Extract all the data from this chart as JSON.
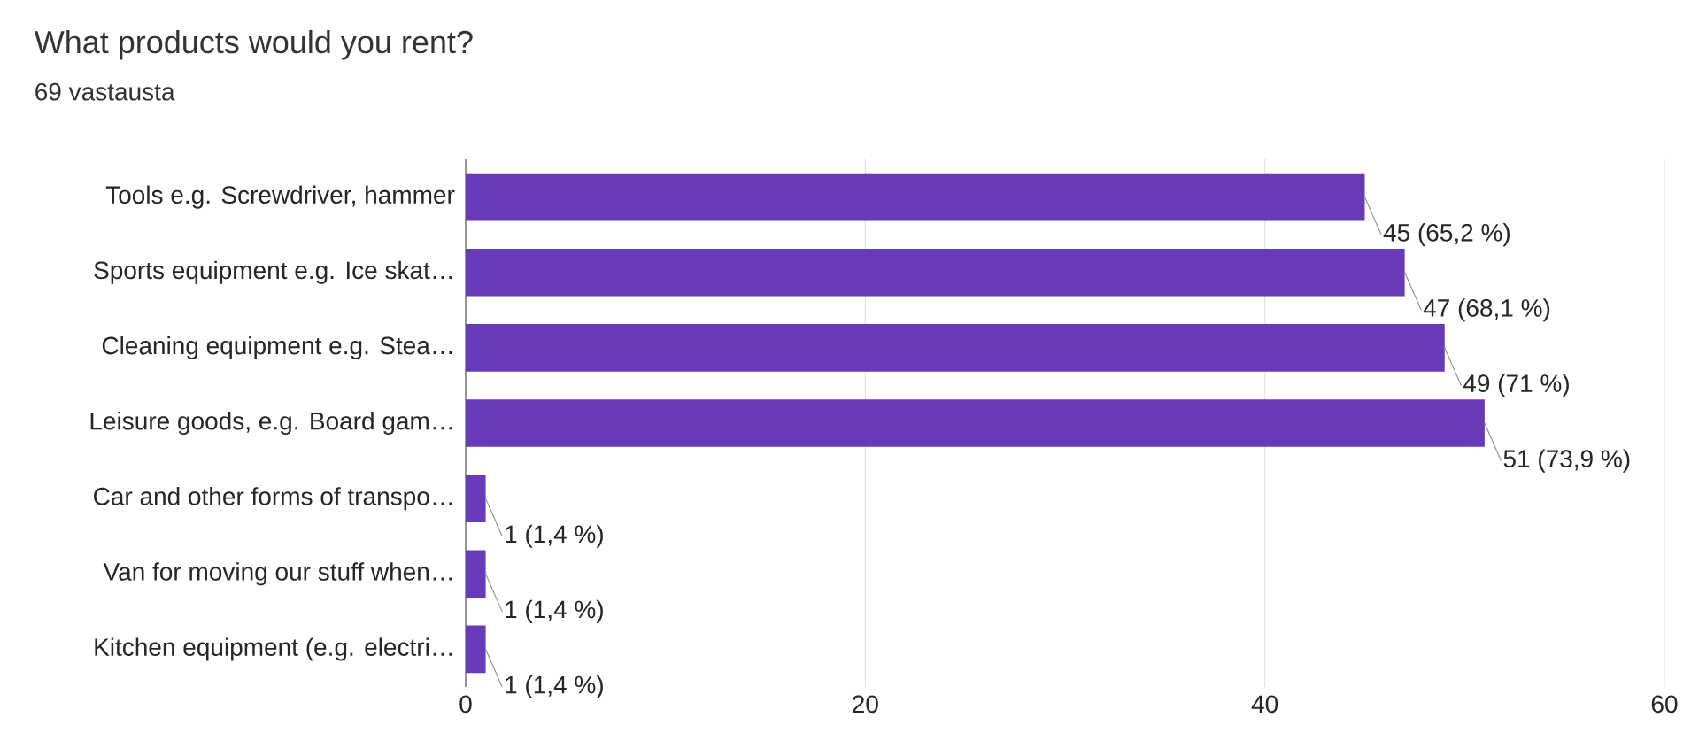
{
  "chart_data": {
    "type": "bar",
    "orientation": "horizontal",
    "title": "What products would you rent?",
    "subtitle": "69 vastausta",
    "categories": [
      "Tools e.g. Screwdriver, hammer",
      "Sports equipment e.g. Ice skat…",
      "Cleaning equipment e.g. Stea…",
      "Leisure goods, e.g. Board gam…",
      "Car and other forms of transpo…",
      "Van for moving our stuff when…",
      "Kitchen equipment (e.g. electri…"
    ],
    "values": [
      45,
      47,
      49,
      51,
      1,
      1,
      1
    ],
    "value_labels": [
      "45 (65,2 %)",
      "47 (68,1 %)",
      "49 (71 %)",
      "51 (73,9 %)",
      "1 (1,4 %)",
      "1 (1,4 %)",
      "1 (1,4 %)"
    ],
    "color": "#673ab7",
    "xlim": [
      0,
      60
    ],
    "xticks": [
      0,
      20,
      40,
      60
    ],
    "grid": "x"
  }
}
